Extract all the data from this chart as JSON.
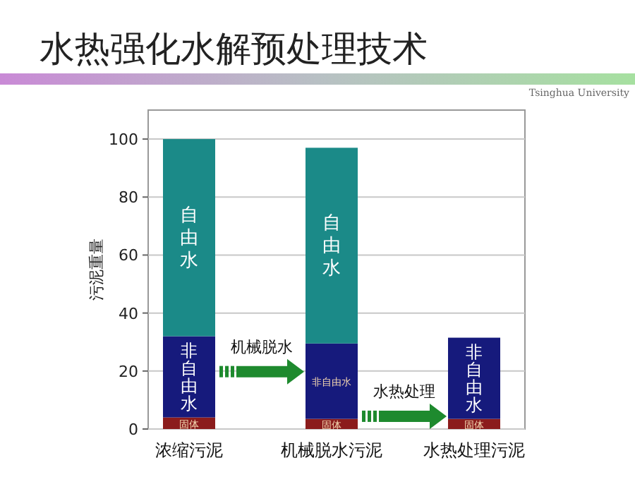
{
  "chart_data": {
    "type": "bar",
    "title": "水热强化水解预处理技术",
    "stacked": true,
    "ylabel": "污泥重量",
    "categories": [
      "浓缩污泥",
      "机械脱水污泥",
      "水热处理污泥"
    ],
    "series": [
      {
        "name": "固体",
        "color": "#8b1c1c",
        "values": [
          4,
          3.5,
          3.5
        ]
      },
      {
        "name": "非自由水",
        "color": "#161a7c",
        "values": [
          28,
          26,
          28
        ]
      },
      {
        "name": "自由水",
        "color": "#1b8a88",
        "values": [
          68,
          67.5,
          null
        ]
      }
    ],
    "ylim": [
      0,
      110
    ],
    "yticks": [
      0,
      20,
      40,
      60,
      80,
      100
    ],
    "grid": "y",
    "annotations": [
      "机械脱水",
      "水热处理",
      "Tsinghua University"
    ]
  }
}
